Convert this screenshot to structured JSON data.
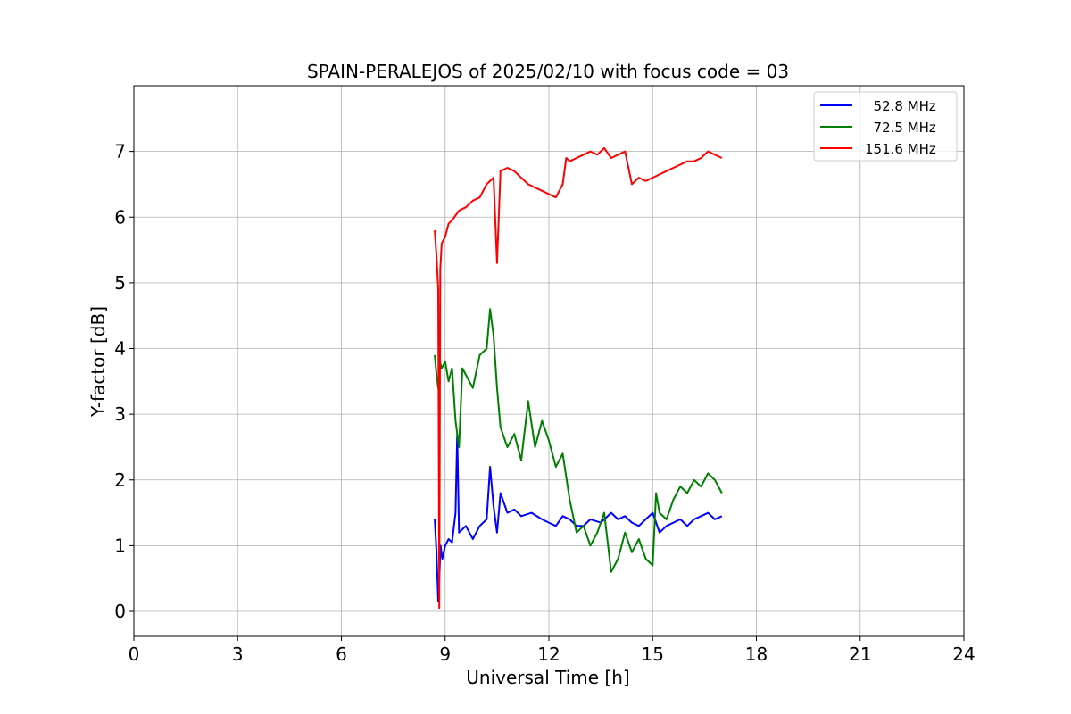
{
  "chart_data": {
    "type": "line",
    "title": "SPAIN-PERALEJOS of 2025/02/10 with focus code = 03",
    "xlabel": "Universal Time [h]",
    "ylabel": "Y-factor [dB]",
    "xlim": [
      0,
      24
    ],
    "ylim": [
      -0.38,
      8.0
    ],
    "xticks": [
      0,
      3,
      6,
      9,
      12,
      15,
      18,
      21,
      24
    ],
    "yticks": [
      0,
      1,
      2,
      3,
      4,
      5,
      6,
      7
    ],
    "grid": true,
    "legend_position": "top-right",
    "series": [
      {
        "name": "  52.8 MHz",
        "color": "#0000ff",
        "x": [
          8.7,
          8.75,
          8.8,
          8.83,
          8.87,
          8.92,
          9.0,
          9.1,
          9.2,
          9.3,
          9.35,
          9.4,
          9.6,
          9.8,
          10.0,
          10.2,
          10.3,
          10.4,
          10.5,
          10.6,
          10.8,
          11.0,
          11.2,
          11.5,
          11.8,
          12.0,
          12.2,
          12.4,
          12.6,
          12.8,
          13.0,
          13.2,
          13.5,
          13.8,
          14.0,
          14.2,
          14.4,
          14.6,
          14.8,
          15.0,
          15.2,
          15.4,
          15.6,
          15.8,
          16.0,
          16.2,
          16.4,
          16.6,
          16.8,
          17.0
        ],
        "y": [
          1.4,
          0.9,
          0.15,
          0.5,
          1.0,
          0.8,
          1.0,
          1.1,
          1.05,
          1.5,
          2.7,
          1.2,
          1.3,
          1.1,
          1.3,
          1.4,
          2.2,
          1.6,
          1.2,
          1.8,
          1.5,
          1.55,
          1.45,
          1.5,
          1.4,
          1.35,
          1.3,
          1.45,
          1.4,
          1.3,
          1.3,
          1.4,
          1.35,
          1.5,
          1.4,
          1.45,
          1.35,
          1.3,
          1.4,
          1.5,
          1.2,
          1.3,
          1.35,
          1.4,
          1.3,
          1.4,
          1.45,
          1.5,
          1.4,
          1.45
        ]
      },
      {
        "name": "  72.5 MHz",
        "color": "#008000",
        "x": [
          8.7,
          8.75,
          8.8,
          8.85,
          8.9,
          9.0,
          9.1,
          9.2,
          9.3,
          9.4,
          9.5,
          9.6,
          9.8,
          10.0,
          10.2,
          10.3,
          10.4,
          10.5,
          10.6,
          10.8,
          11.0,
          11.2,
          11.4,
          11.6,
          11.8,
          12.0,
          12.2,
          12.4,
          12.6,
          12.8,
          13.0,
          13.2,
          13.4,
          13.6,
          13.8,
          14.0,
          14.2,
          14.4,
          14.6,
          14.8,
          15.0,
          15.1,
          15.2,
          15.4,
          15.6,
          15.8,
          16.0,
          16.2,
          16.4,
          16.6,
          16.8,
          17.0
        ],
        "y": [
          3.9,
          3.6,
          3.4,
          3.8,
          3.7,
          3.8,
          3.5,
          3.7,
          2.9,
          2.5,
          3.7,
          3.6,
          3.4,
          3.9,
          4.0,
          4.6,
          4.2,
          3.4,
          2.8,
          2.5,
          2.7,
          2.3,
          3.2,
          2.5,
          2.9,
          2.6,
          2.2,
          2.4,
          1.7,
          1.2,
          1.3,
          1.0,
          1.2,
          1.5,
          0.6,
          0.8,
          1.2,
          0.9,
          1.1,
          0.8,
          0.7,
          1.8,
          1.5,
          1.4,
          1.7,
          1.9,
          1.8,
          2.0,
          1.9,
          2.1,
          2.0,
          1.8
        ]
      },
      {
        "name": "151.6 MHz",
        "color": "#ff0000",
        "x": [
          8.7,
          8.75,
          8.8,
          8.83,
          8.86,
          8.9,
          9.0,
          9.1,
          9.2,
          9.4,
          9.6,
          9.8,
          10.0,
          10.2,
          10.4,
          10.5,
          10.6,
          10.8,
          11.0,
          11.2,
          11.4,
          11.6,
          11.8,
          12.0,
          12.2,
          12.4,
          12.5,
          12.6,
          12.8,
          13.0,
          13.2,
          13.4,
          13.6,
          13.8,
          14.0,
          14.2,
          14.4,
          14.5,
          14.6,
          14.8,
          15.0,
          15.2,
          15.4,
          15.6,
          15.8,
          16.0,
          16.2,
          16.4,
          16.6,
          16.8,
          17.0
        ],
        "y": [
          5.8,
          5.4,
          4.9,
          0.05,
          5.2,
          5.6,
          5.7,
          5.9,
          5.95,
          6.1,
          6.15,
          6.25,
          6.3,
          6.5,
          6.6,
          5.3,
          6.7,
          6.75,
          6.7,
          6.6,
          6.5,
          6.45,
          6.4,
          6.35,
          6.3,
          6.5,
          6.9,
          6.85,
          6.9,
          6.95,
          7.0,
          6.95,
          7.05,
          6.9,
          6.95,
          7.0,
          6.5,
          6.55,
          6.6,
          6.55,
          6.6,
          6.65,
          6.7,
          6.75,
          6.8,
          6.85,
          6.85,
          6.9,
          7.0,
          6.95,
          6.9
        ]
      }
    ]
  }
}
